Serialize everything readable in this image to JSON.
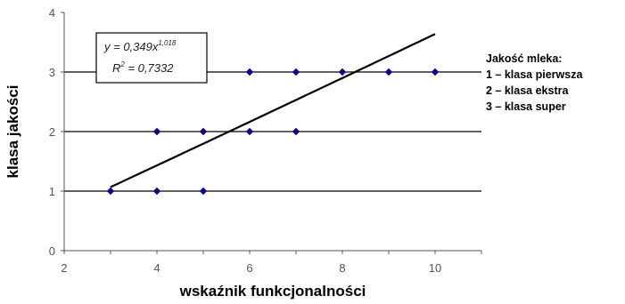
{
  "chart_data": {
    "type": "scatter",
    "xlabel": "wskaźnik funkcjonalności",
    "ylabel": "klasa jakości",
    "xlim": [
      2,
      11
    ],
    "ylim": [
      0,
      4
    ],
    "x_ticks": [
      "2",
      "4",
      "6",
      "8",
      "10"
    ],
    "y_ticks": [
      "0",
      "1",
      "2",
      "3",
      "4"
    ],
    "grid": "horizontal lines at y = 1, 2, 3",
    "points": [
      {
        "x": 3,
        "y": 1
      },
      {
        "x": 4,
        "y": 1
      },
      {
        "x": 5,
        "y": 1
      },
      {
        "x": 4,
        "y": 2
      },
      {
        "x": 5,
        "y": 2
      },
      {
        "x": 6,
        "y": 2
      },
      {
        "x": 7,
        "y": 2
      },
      {
        "x": 6,
        "y": 3
      },
      {
        "x": 7,
        "y": 3
      },
      {
        "x": 8,
        "y": 3
      },
      {
        "x": 9,
        "y": 3
      },
      {
        "x": 10,
        "y": 3
      }
    ],
    "trendline": {
      "type": "power",
      "x_start": 3,
      "x_end": 10,
      "coefficient": 0.349,
      "exponent": 1.018
    },
    "annotation": {
      "equation_prefix": "y = 0,349x",
      "equation_exponent": "1,018",
      "r2_label": "R",
      "r2_exponent": "2",
      "r2_value": " = 0,7332"
    },
    "legend": {
      "title": "Jakość mleka:",
      "items": [
        "1 – klasa pierwsza",
        "2 – klasa ekstra",
        "3 – klasa super"
      ]
    },
    "colors": {
      "marker": "#0a0a8c",
      "trendline": "#000000",
      "gridline": "#000000",
      "axis": "#555555"
    }
  }
}
